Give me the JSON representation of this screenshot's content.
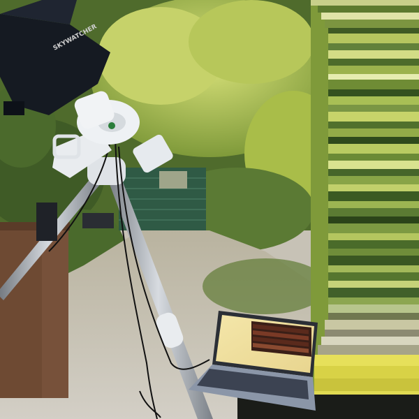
{
  "scene": {
    "subject": "telescope-on-equatorial-mount-with-laptop-in-garden",
    "telescope": {
      "brand_text": "SKYWATCHER"
    },
    "laptop": {
      "screen": "astronomy-software-window"
    },
    "glitch_band": {
      "present": true,
      "side": "right"
    },
    "colors": {
      "sky": "#dfe6ea",
      "foliage_dark": "#3f5b26",
      "foliage_light": "#b9c95a",
      "shed": "#2f5a45",
      "gravel": "#cbc6bb",
      "bin": "#6e4a33",
      "tripod_leg": "#9ea3a8",
      "mount_white": "#e9ecef",
      "tube_black": "#151a22",
      "laptop": "#8b96a8"
    }
  }
}
